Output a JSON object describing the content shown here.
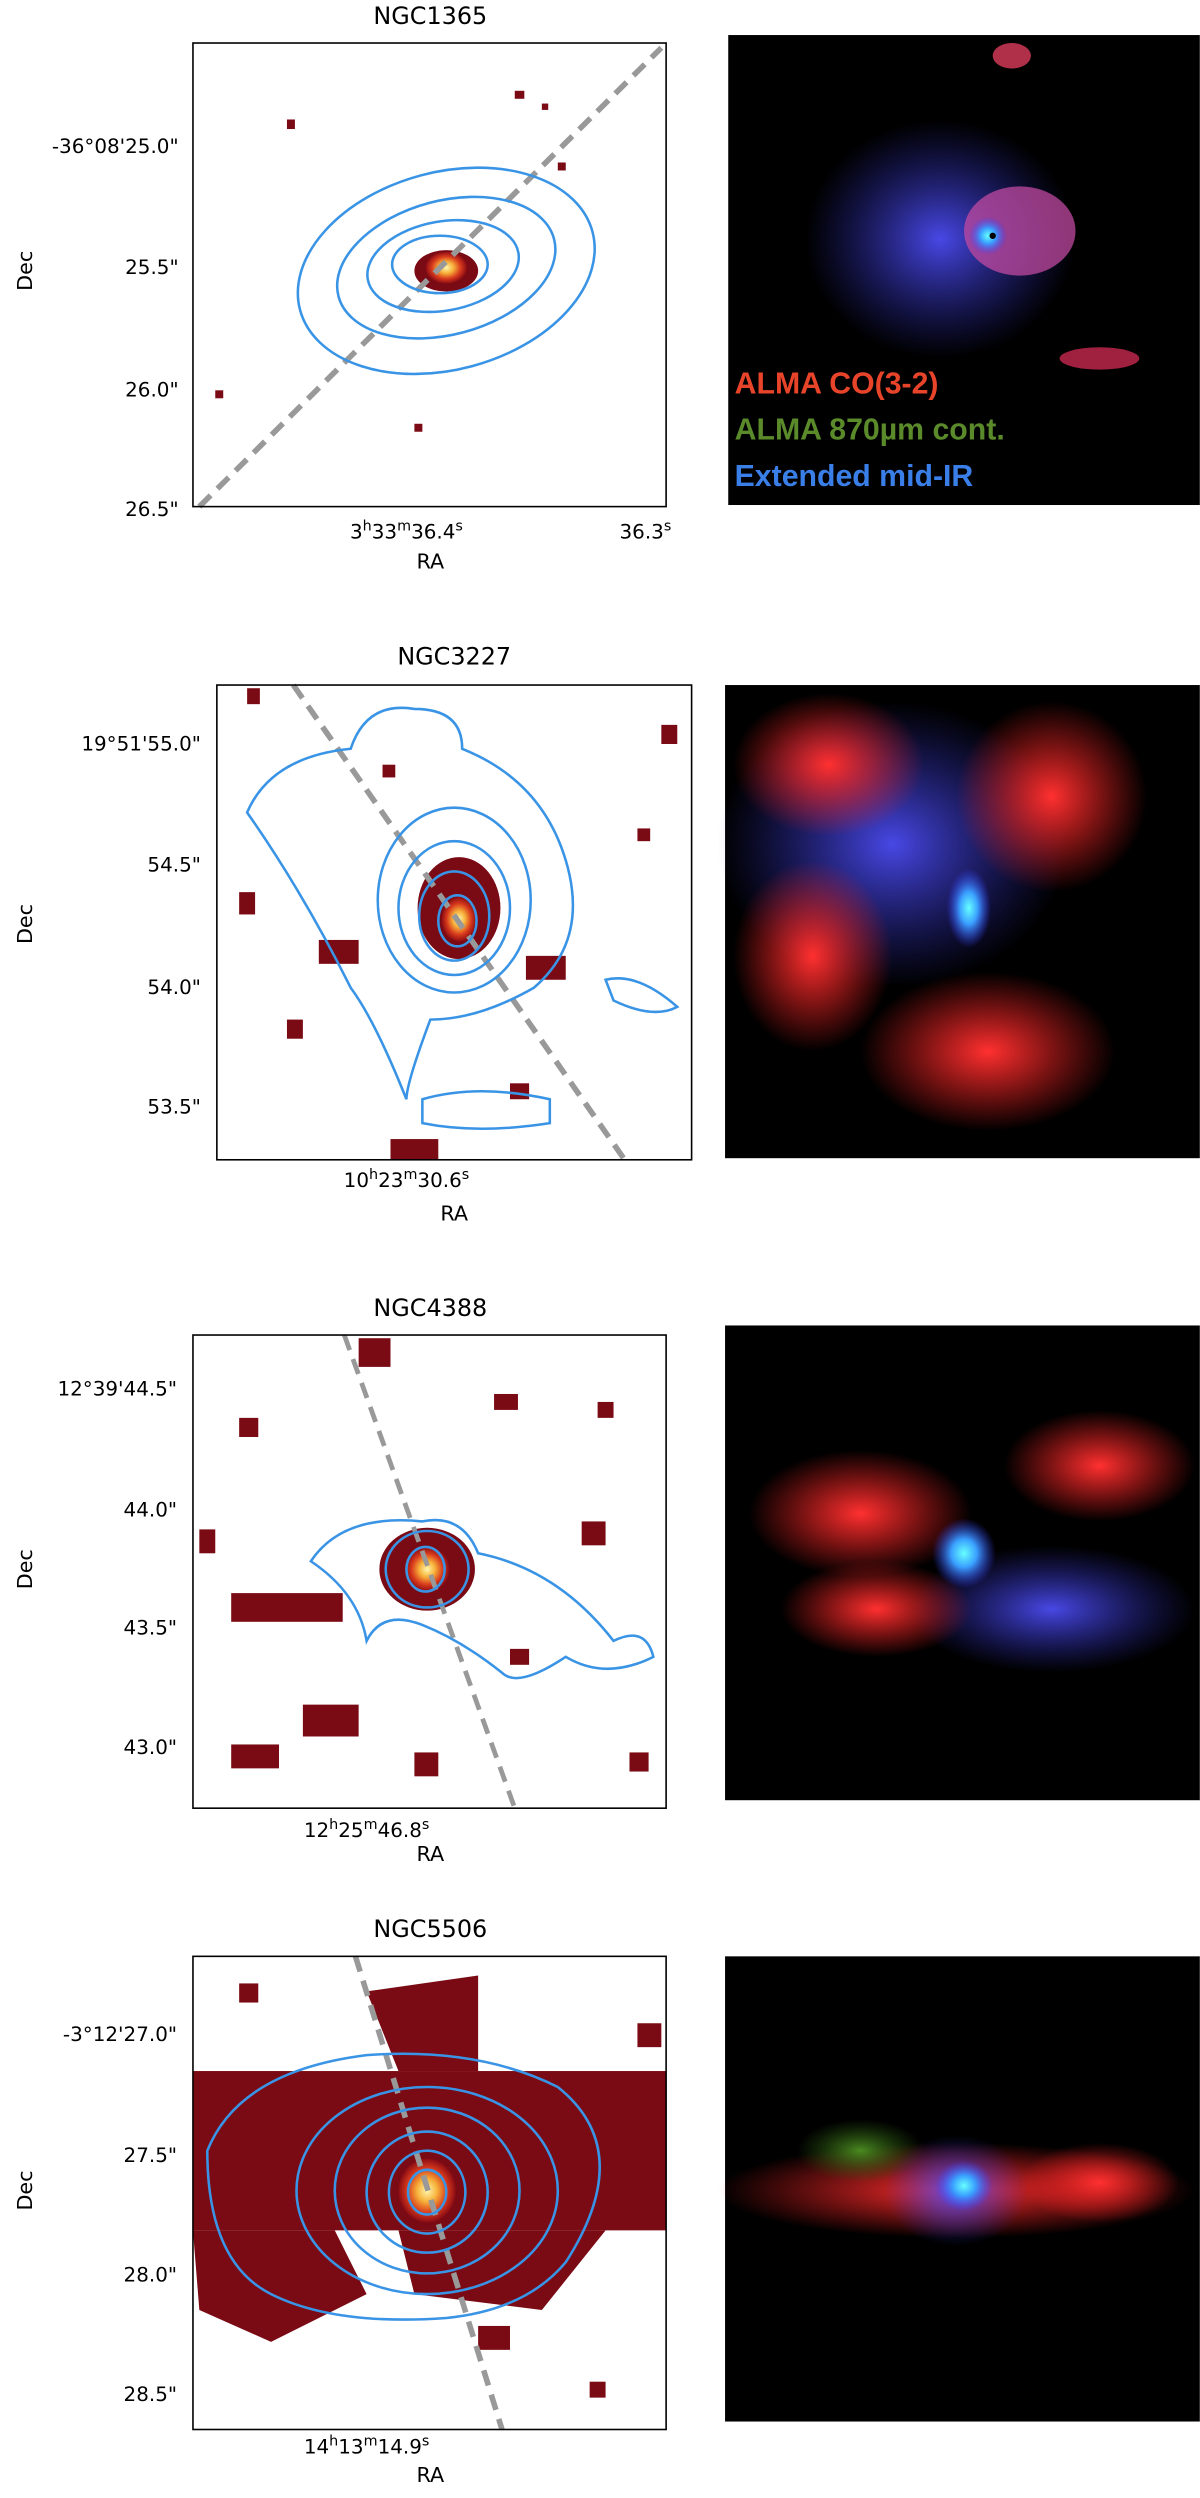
{
  "panels": [
    {
      "title": "NGC1365",
      "ylabel": "Dec",
      "xlabel": "RA",
      "yticks": [
        "-36°08'25.0\"",
        "25.5\"",
        "26.0\"",
        "26.5\""
      ],
      "xticks": [
        [
          [
            "3",
            "h"
          ],
          [
            "33",
            "m"
          ],
          [
            "36.4",
            "s"
          ]
        ],
        [
          [
            "36.3",
            "s"
          ]
        ]
      ]
    },
    {
      "title": "NGC3227",
      "ylabel": "Dec",
      "xlabel": "RA",
      "yticks": [
        "19°51'55.0\"",
        "54.5\"",
        "54.0\"",
        "53.5\""
      ],
      "xticks": [
        [
          [
            "10",
            "h"
          ],
          [
            "23",
            "m"
          ],
          [
            "30.6",
            "s"
          ]
        ]
      ]
    },
    {
      "title": "NGC4388",
      "ylabel": "Dec",
      "xlabel": "RA",
      "yticks": [
        "12°39'44.5\"",
        "44.0\"",
        "43.5\"",
        "43.0\""
      ],
      "xticks": [
        [
          [
            "12",
            "h"
          ],
          [
            "25",
            "m"
          ],
          [
            "46.8",
            "s"
          ]
        ]
      ]
    },
    {
      "title": "NGC5506",
      "ylabel": "Dec",
      "xlabel": "RA",
      "yticks": [
        "-3°12'27.0\"",
        "27.5\"",
        "28.0\"",
        "28.5\""
      ],
      "xticks": [
        [
          [
            "14",
            "h"
          ],
          [
            "13",
            "m"
          ],
          [
            "14.9",
            "s"
          ]
        ]
      ]
    }
  ],
  "legend": [
    "ALMA CO(3-2)",
    "ALMA 870µm cont.",
    "Extended mid-IR"
  ]
}
